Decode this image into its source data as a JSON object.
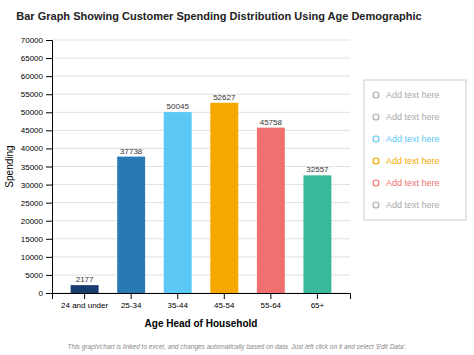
{
  "chart_data": {
    "type": "bar",
    "title": "Bar Graph Showing Customer Spending Distribution Using Age Demographic",
    "categories": [
      "24 and under",
      "25-34",
      "35-44",
      "45-54",
      "55-64",
      "65+"
    ],
    "values": [
      2177,
      37738,
      50045,
      52627,
      45758,
      32557
    ],
    "colors": [
      "#1a3d6e",
      "#2979b5",
      "#5bc8f5",
      "#f5a800",
      "#f07070",
      "#3ab89a"
    ],
    "xlabel": "Age Head of Household",
    "ylabel": "Spending",
    "ylim": [
      0,
      70000
    ],
    "yticks": [
      0,
      5000,
      10000,
      15000,
      20000,
      25000,
      30000,
      35000,
      40000,
      45000,
      50000,
      55000,
      60000,
      65000,
      70000
    ],
    "grid": true,
    "data_labels": true,
    "annotations": [
      {
        "text": "Add text here",
        "color": "#aaaaaa"
      },
      {
        "text": "Add text here",
        "color": "#aaaaaa"
      },
      {
        "text": "Add text here",
        "color": "#5bc8f5"
      },
      {
        "text": "Add text here",
        "color": "#f5a800"
      },
      {
        "text": "Add text here",
        "color": "#f07070"
      },
      {
        "text": "Add text here",
        "color": "#aaaaaa"
      }
    ],
    "footer": "This graph/chart is linked to excel, and changes automatically based on data. Just left click on it and select 'Edit Data'."
  }
}
